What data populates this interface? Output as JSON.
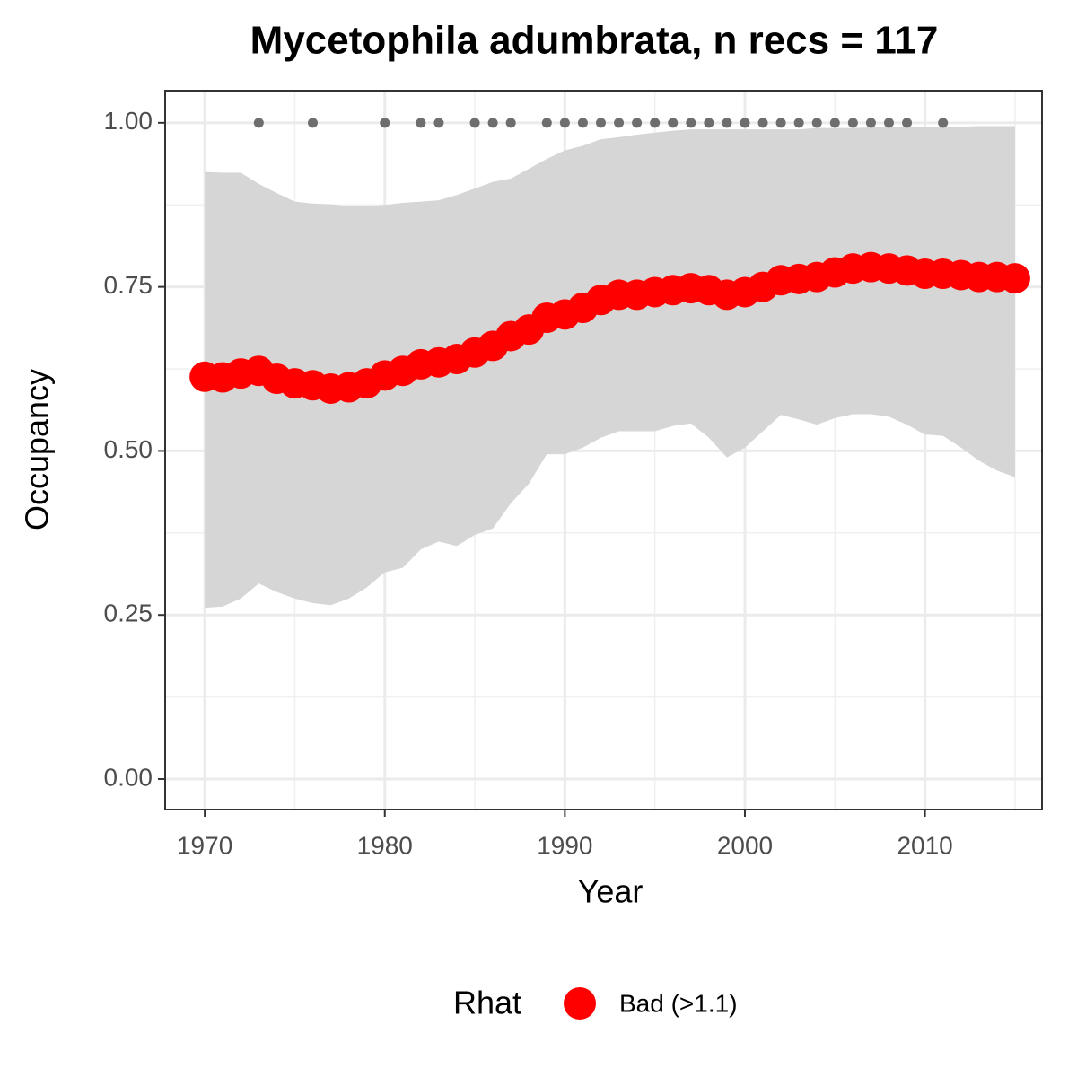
{
  "chart_data": {
    "type": "line",
    "title": "Mycetophila adumbrata, n recs = 117",
    "xlabel": "Year",
    "ylabel": "Occupancy",
    "x": [
      1970,
      1971,
      1972,
      1973,
      1974,
      1975,
      1976,
      1977,
      1978,
      1979,
      1980,
      1981,
      1982,
      1983,
      1984,
      1985,
      1986,
      1987,
      1988,
      1989,
      1990,
      1991,
      1992,
      1993,
      1994,
      1995,
      1996,
      1997,
      1998,
      1999,
      2000,
      2001,
      2002,
      2003,
      2004,
      2005,
      2006,
      2007,
      2008,
      2009,
      2010,
      2011,
      2012,
      2013,
      2014,
      2015
    ],
    "series": [
      {
        "name": "Bad (>1.1)",
        "color": "#ff0000",
        "values": [
          0.613,
          0.612,
          0.618,
          0.622,
          0.61,
          0.603,
          0.6,
          0.595,
          0.597,
          0.603,
          0.615,
          0.622,
          0.632,
          0.635,
          0.64,
          0.65,
          0.66,
          0.675,
          0.685,
          0.703,
          0.708,
          0.718,
          0.73,
          0.738,
          0.738,
          0.742,
          0.745,
          0.748,
          0.745,
          0.738,
          0.742,
          0.75,
          0.76,
          0.762,
          0.765,
          0.772,
          0.778,
          0.78,
          0.778,
          0.775,
          0.77,
          0.77,
          0.768,
          0.765,
          0.765,
          0.763
        ]
      }
    ],
    "band": {
      "color": "#d6d6d6",
      "upper": [
        0.925,
        0.924,
        0.924,
        0.907,
        0.893,
        0.88,
        0.877,
        0.876,
        0.873,
        0.873,
        0.875,
        0.878,
        0.88,
        0.882,
        0.89,
        0.9,
        0.91,
        0.915,
        0.93,
        0.945,
        0.958,
        0.965,
        0.975,
        0.978,
        0.982,
        0.985,
        0.988,
        0.99,
        0.99,
        0.99,
        0.99,
        0.99,
        0.99,
        0.99,
        0.992,
        0.992,
        0.992,
        0.993,
        0.993,
        0.993,
        0.994,
        0.994,
        0.994,
        0.995,
        0.995,
        0.995
      ],
      "lower": [
        0.261,
        0.263,
        0.275,
        0.298,
        0.285,
        0.275,
        0.268,
        0.265,
        0.275,
        0.292,
        0.315,
        0.322,
        0.35,
        0.362,
        0.355,
        0.372,
        0.382,
        0.42,
        0.45,
        0.495,
        0.495,
        0.505,
        0.52,
        0.53,
        0.53,
        0.53,
        0.538,
        0.542,
        0.52,
        0.49,
        0.505,
        0.53,
        0.555,
        0.548,
        0.54,
        0.55,
        0.556,
        0.556,
        0.552,
        0.54,
        0.525,
        0.523,
        0.505,
        0.485,
        0.47,
        0.46
      ]
    },
    "records": {
      "color": "#6e6e6e",
      "x": [
        1973,
        1976,
        1980,
        1982,
        1983,
        1985,
        1986,
        1987,
        1989,
        1990,
        1991,
        1992,
        1993,
        1994,
        1995,
        1996,
        1997,
        1998,
        1999,
        2000,
        2001,
        2002,
        2003,
        2004,
        2005,
        2006,
        2007,
        2008,
        2009,
        2011
      ],
      "values": [
        1,
        1,
        1,
        1,
        1,
        1,
        1,
        1,
        1,
        1,
        1,
        1,
        1,
        1,
        1,
        1,
        1,
        1,
        1,
        1,
        1,
        1,
        1,
        1,
        1,
        1,
        1,
        1,
        1,
        1
      ]
    },
    "legend_title": "Rhat",
    "legend_position": "bottom",
    "xlim": [
      1967.8,
      2016.5
    ],
    "ylim": [
      -0.0465,
      1.049
    ],
    "xticks": [
      1970,
      1980,
      1990,
      2000,
      2010
    ],
    "yticks": [
      {
        "value": 0,
        "label": "0.00"
      },
      {
        "value": 0.25,
        "label": "0.25"
      },
      {
        "value": 0.5,
        "label": "0.50"
      },
      {
        "value": 0.75,
        "label": "0.75"
      },
      {
        "value": 1,
        "label": "1.00"
      }
    ],
    "xminorticks": [
      1975,
      1985,
      1995,
      2005,
      2015
    ],
    "yminorticks": [
      0.125,
      0.375,
      0.625,
      0.875
    ],
    "grid": true
  }
}
